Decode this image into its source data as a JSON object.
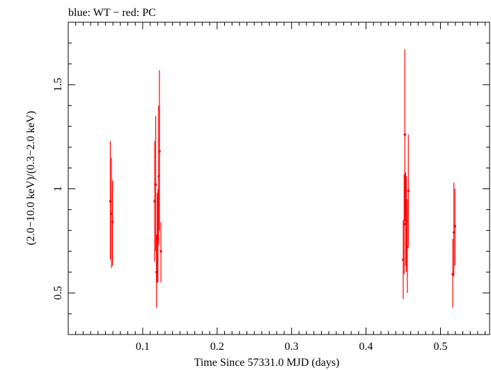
{
  "chart_data": {
    "type": "scatter",
    "title": "blue: WT − red: PC",
    "xlabel": "Time Since 57331.0 MJD (days)",
    "ylabel": "(2.0−10.0 keV)/(0.3−2.0 keV)",
    "xlim": [
      0.0,
      0.566
    ],
    "ylim": [
      0.3,
      1.8
    ],
    "x_ticks": [
      {
        "value": 0.1,
        "label": "0.1"
      },
      {
        "value": 0.2,
        "label": "0.2"
      },
      {
        "value": 0.3,
        "label": "0.3"
      },
      {
        "value": 0.4,
        "label": "0.4"
      },
      {
        "value": 0.5,
        "label": "0.5"
      }
    ],
    "y_ticks": [
      {
        "value": 0.5,
        "label": "0.5"
      },
      {
        "value": 1.0,
        "label": "1"
      },
      {
        "value": 1.5,
        "label": "1.5"
      }
    ],
    "x_minor_step": 0.01,
    "y_minor_step": 0.1,
    "grid": false,
    "series": [
      {
        "color": "#ff0000",
        "points": [
          {
            "x": 0.0565,
            "y": 0.94,
            "ylo": 0.66,
            "yhi": 1.23
          },
          {
            "x": 0.058,
            "y": 0.88,
            "ylo": 0.62,
            "yhi": 1.15
          },
          {
            "x": 0.0595,
            "y": 0.84,
            "ylo": 0.63,
            "yhi": 1.04
          },
          {
            "x": 0.116,
            "y": 0.94,
            "ylo": 0.65,
            "yhi": 1.23
          },
          {
            "x": 0.1175,
            "y": 1.02,
            "ylo": 0.7,
            "yhi": 1.35
          },
          {
            "x": 0.1185,
            "y": 0.6,
            "ylo": 0.43,
            "yhi": 0.78
          },
          {
            "x": 0.1195,
            "y": 0.77,
            "ylo": 0.55,
            "yhi": 0.98
          },
          {
            "x": 0.1205,
            "y": 0.76,
            "ylo": 0.55,
            "yhi": 1.0
          },
          {
            "x": 0.1215,
            "y": 1.06,
            "ylo": 0.73,
            "yhi": 1.4
          },
          {
            "x": 0.1225,
            "y": 1.18,
            "ylo": 0.8,
            "yhi": 1.57
          },
          {
            "x": 0.1245,
            "y": 0.7,
            "ylo": 0.55,
            "yhi": 0.84
          },
          {
            "x": 0.45,
            "y": 0.66,
            "ylo": 0.47,
            "yhi": 0.85
          },
          {
            "x": 0.4512,
            "y": 0.83,
            "ylo": 0.59,
            "yhi": 1.07
          },
          {
            "x": 0.4522,
            "y": 1.26,
            "ylo": 0.85,
            "yhi": 1.67
          },
          {
            "x": 0.4532,
            "y": 0.85,
            "ylo": 0.63,
            "yhi": 1.08
          },
          {
            "x": 0.4542,
            "y": 0.84,
            "ylo": 0.6,
            "yhi": 1.06
          },
          {
            "x": 0.4555,
            "y": 0.72,
            "ylo": 0.5,
            "yhi": 0.95
          },
          {
            "x": 0.4568,
            "y": 0.99,
            "ylo": 0.72,
            "yhi": 1.26
          },
          {
            "x": 0.5165,
            "y": 0.59,
            "ylo": 0.43,
            "yhi": 0.76
          },
          {
            "x": 0.518,
            "y": 0.79,
            "ylo": 0.58,
            "yhi": 1.03
          },
          {
            "x": 0.5195,
            "y": 0.82,
            "ylo": 0.63,
            "yhi": 1.0
          }
        ]
      }
    ]
  }
}
